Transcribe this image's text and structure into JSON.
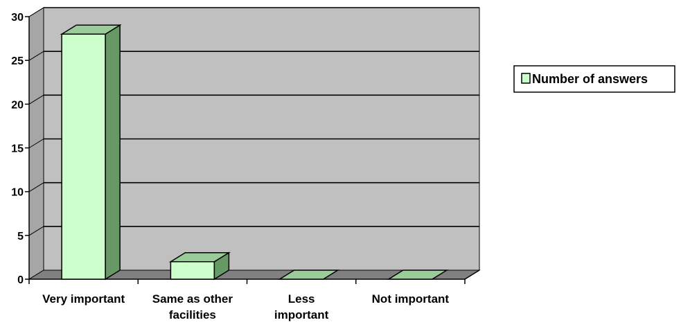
{
  "chart_data": {
    "type": "bar",
    "title": "",
    "xlabel": "",
    "ylabel": "",
    "categories": [
      [
        "Very important"
      ],
      [
        "Same as other",
        "facilities"
      ],
      [
        "Less",
        "important"
      ],
      [
        "Not important"
      ]
    ],
    "series": [
      {
        "name": "Number of answers",
        "values": [
          28,
          2,
          0,
          0
        ]
      }
    ],
    "ylim": [
      0,
      30
    ],
    "yticks": [
      "0",
      "5",
      "10",
      "15",
      "20",
      "25",
      "30"
    ],
    "grid": true,
    "legend_position": "right",
    "colors": {
      "bar_front": "#CCFFCC",
      "bar_top": "#99CC99",
      "bar_side": "#669966",
      "back_wall": "#C0C0C0",
      "side_wall": "#A6A6A6",
      "floor": "#808080",
      "gridline": "#000000"
    }
  }
}
